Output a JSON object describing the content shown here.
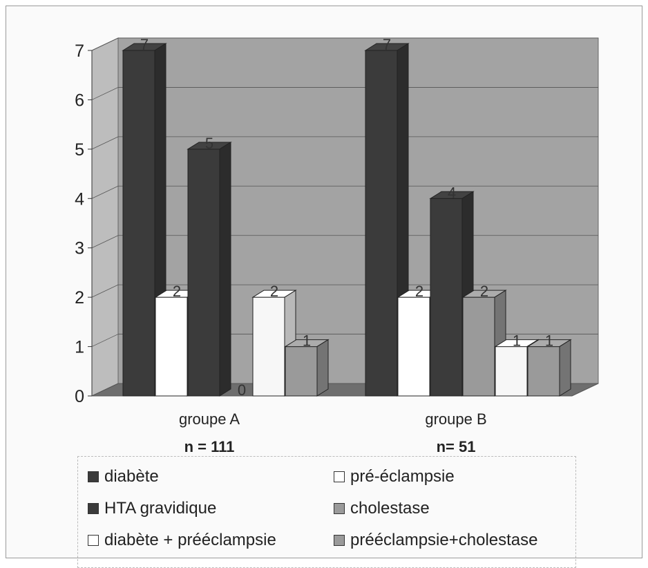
{
  "chart_data": {
    "type": "bar",
    "title": "",
    "xlabel": "",
    "ylabel": "",
    "ylim": [
      0,
      7
    ],
    "yticks": [
      0,
      1,
      2,
      3,
      4,
      5,
      6,
      7
    ],
    "grid": true,
    "three_d": true,
    "legend_position": "bottom",
    "categories": [
      "groupe A",
      "groupe B"
    ],
    "sample_sizes": [
      "n = 111",
      "n= 51"
    ],
    "series": [
      {
        "name": "diabète",
        "color": "#3b3b3b",
        "values": [
          7,
          7
        ],
        "labels": [
          "7",
          "7"
        ]
      },
      {
        "name": "pré-éclampsie",
        "color": "#ffffff",
        "values": [
          2,
          2
        ],
        "labels": [
          "2",
          "2"
        ]
      },
      {
        "name": "HTA gravidique",
        "color": "#3b3b3b",
        "values": [
          5,
          4
        ],
        "labels": [
          "5",
          "4"
        ]
      },
      {
        "name": "cholestase",
        "color": "#9a9a9a",
        "values": [
          0,
          2
        ],
        "labels": [
          "0",
          "2"
        ]
      },
      {
        "name": "diabète + prééclampsie",
        "color": "#f7f7f7",
        "values": [
          2,
          1
        ],
        "labels": [
          "2",
          "1"
        ]
      },
      {
        "name": "prééclampsie+cholestase",
        "color": "#9a9a9a",
        "values": [
          1,
          1
        ],
        "labels": [
          "1",
          "1"
        ]
      }
    ]
  },
  "legend": [
    {
      "label": "diabète",
      "color": "#3b3b3b"
    },
    {
      "label": "pré-éclampsie",
      "color": "#ffffff"
    },
    {
      "label": "HTA gravidique",
      "color": "#3b3b3b"
    },
    {
      "label": "cholestase",
      "color": "#9a9a9a"
    },
    {
      "label": "diabète + prééclampsie",
      "color": "#ffffff"
    },
    {
      "label": "prééclampsie+cholestase",
      "color": "#9a9a9a"
    }
  ]
}
